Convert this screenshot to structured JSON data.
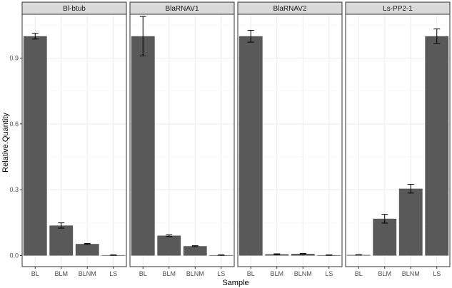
{
  "chart_data": {
    "type": "bar",
    "xlabel": "Sample",
    "ylabel": "Relative.Quantity",
    "ylim": [
      0,
      1.1
    ],
    "y_ticks": [
      0.0,
      0.3,
      0.6,
      0.9
    ],
    "y_tick_labels": [
      "0.0",
      "0.3",
      "0.6",
      "0.9"
    ],
    "categories": [
      "BL",
      "BLM",
      "BLNM",
      "LS"
    ],
    "grid": true,
    "colors": {
      "bar": "#595959",
      "panel_bg": "#ffffff",
      "grid_major": "#ebebeb",
      "grid_minor": "#f5f5f5",
      "strip_bg": "#d9d9d9",
      "border": "#333333"
    },
    "facets": [
      {
        "label": "Bl-btub",
        "values": [
          1.0,
          0.137,
          0.053,
          0.002
        ],
        "errors": [
          0.013,
          0.012,
          0.002,
          0.001
        ]
      },
      {
        "label": "BlaRNAV1",
        "values": [
          1.0,
          0.091,
          0.043,
          0.002
        ],
        "errors": [
          0.09,
          0.004,
          0.002,
          0.001
        ]
      },
      {
        "label": "BlaRNAV2",
        "values": [
          1.0,
          0.006,
          0.008,
          0.002
        ],
        "errors": [
          0.027,
          0.002,
          0.002,
          0.001
        ]
      },
      {
        "label": "Ls-PP2-1",
        "values": [
          0.003,
          0.168,
          0.305,
          1.0
        ],
        "errors": [
          0.001,
          0.02,
          0.02,
          0.033
        ]
      }
    ]
  }
}
